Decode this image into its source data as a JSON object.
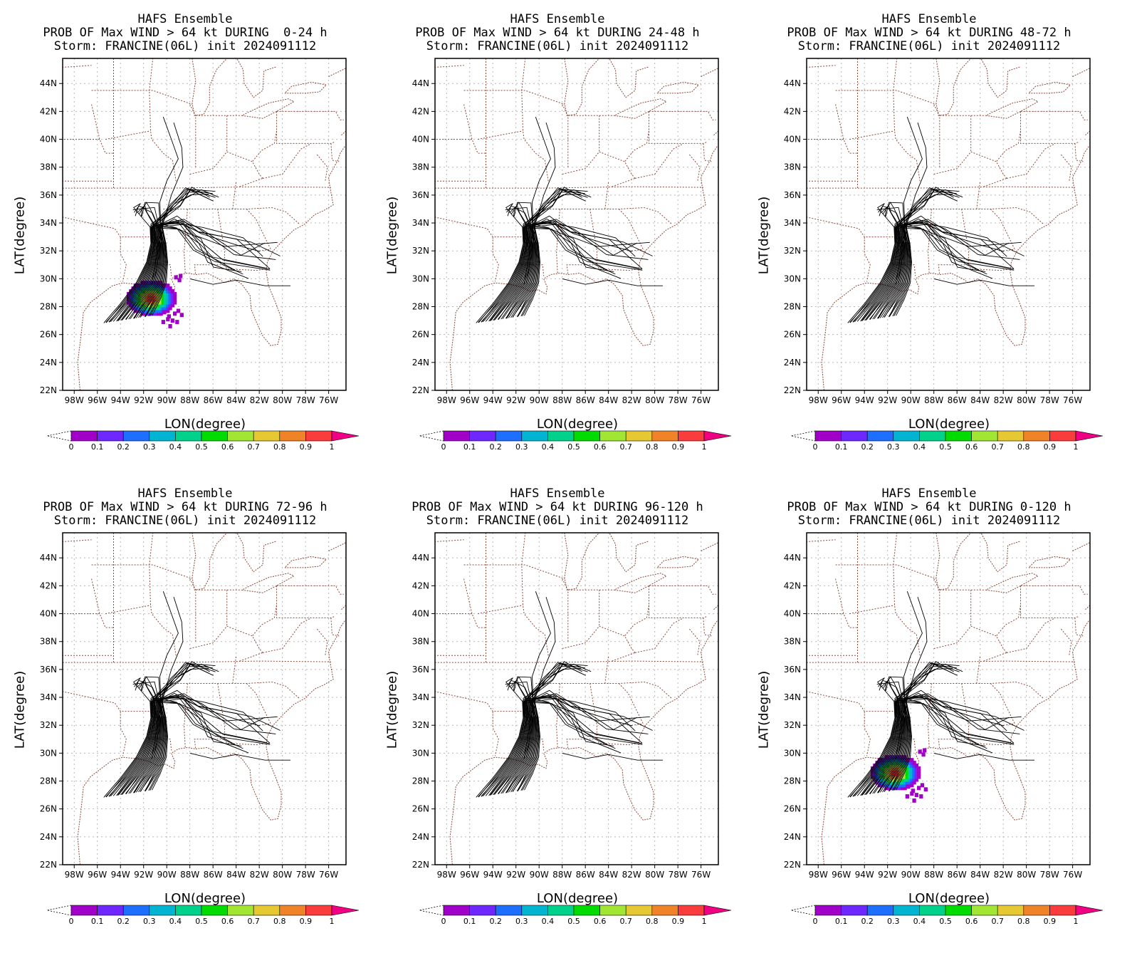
{
  "figure": {
    "model": "HAFS Ensemble",
    "storm": "Storm: FRANCINE(06L) init 2024091112",
    "xlabel": "LON(degree)",
    "ylabel": "LAT(degree)",
    "lat_ticks": [
      "22N",
      "24N",
      "26N",
      "28N",
      "30N",
      "32N",
      "34N",
      "36N",
      "38N",
      "40N",
      "42N",
      "44N"
    ],
    "lon_ticks": [
      "98W",
      "96W",
      "94W",
      "92W",
      "90W",
      "88W",
      "86W",
      "84W",
      "82W",
      "80W",
      "78W",
      "76W"
    ],
    "map_extent": {
      "lon_min": -99,
      "lon_max": -74.5,
      "lat_min": 22,
      "lat_max": 45.8
    },
    "colorbar": {
      "labels": [
        "0",
        "0.1",
        "0.2",
        "0.3",
        "0.4",
        "0.5",
        "0.6",
        "0.7",
        "0.8",
        "0.9",
        "1"
      ],
      "colors": [
        "#a000c8",
        "#6e28ff",
        "#1e6eff",
        "#00b4d2",
        "#00d28c",
        "#00dc00",
        "#a0e632",
        "#e6c832",
        "#f08228",
        "#fa3c3c",
        "#f00082"
      ]
    },
    "colors": {
      "boundary": "#8b4a3a",
      "grid": "#b8b8b8",
      "track": "#000000"
    }
  },
  "panels": [
    {
      "title": "PROB OF Max WIND > 64 kt DURING  0-24 h",
      "has_prob": true
    },
    {
      "title": "PROB OF Max WIND > 64 kt DURING 24-48 h",
      "has_prob": false
    },
    {
      "title": "PROB OF Max WIND > 64 kt DURING 48-72 h",
      "has_prob": false
    },
    {
      "title": "PROB OF Max WIND > 64 kt DURING 72-96 h",
      "has_prob": false
    },
    {
      "title": "PROB OF Max WIND > 64 kt DURING 96-120 h",
      "has_prob": false
    },
    {
      "title": "PROB OF Max WIND > 64 kt DURING 0-120 h",
      "has_prob": true
    }
  ]
}
